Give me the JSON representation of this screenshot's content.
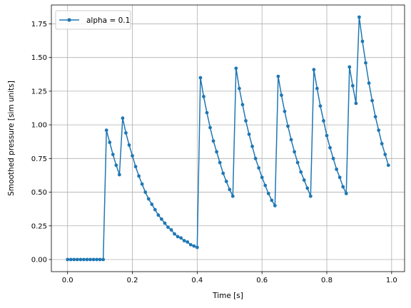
{
  "chart_data": {
    "type": "line",
    "xlabel": "Time [s]",
    "ylabel": "Smoothed pressure [sim units]",
    "xlim": [
      -0.05,
      1.04
    ],
    "ylim": [
      -0.09,
      1.89
    ],
    "xticks": [
      0.0,
      0.2,
      0.4,
      0.6,
      0.8,
      1.0
    ],
    "xtick_labels": [
      "0.0",
      "0.2",
      "0.4",
      "0.6",
      "0.8",
      "1.0"
    ],
    "yticks": [
      0.0,
      0.25,
      0.5,
      0.75,
      1.0,
      1.25,
      1.5,
      1.75
    ],
    "ytick_labels": [
      "0.00",
      "0.25",
      "0.50",
      "0.75",
      "1.00",
      "1.25",
      "1.50",
      "1.75"
    ],
    "grid": true,
    "legend": {
      "position": "top-left"
    },
    "series": [
      {
        "name": "alpha = 0.1",
        "color": "#1f77b4",
        "marker": "circle",
        "x": [
          0.0,
          0.01,
          0.02,
          0.03,
          0.04,
          0.05,
          0.06,
          0.07,
          0.08,
          0.09,
          0.1,
          0.11,
          0.12,
          0.13,
          0.14,
          0.15,
          0.16,
          0.17,
          0.18,
          0.19,
          0.2,
          0.21,
          0.22,
          0.23,
          0.24,
          0.25,
          0.26,
          0.27,
          0.28,
          0.29,
          0.3,
          0.31,
          0.32,
          0.33,
          0.34,
          0.35,
          0.36,
          0.37,
          0.38,
          0.39,
          0.4,
          0.41,
          0.42,
          0.43,
          0.44,
          0.45,
          0.46,
          0.47,
          0.48,
          0.49,
          0.5,
          0.51,
          0.52,
          0.53,
          0.54,
          0.55,
          0.56,
          0.57,
          0.58,
          0.59,
          0.6,
          0.61,
          0.62,
          0.63,
          0.64,
          0.65,
          0.66,
          0.67,
          0.68,
          0.69,
          0.7,
          0.71,
          0.72,
          0.73,
          0.74,
          0.75,
          0.76,
          0.77,
          0.78,
          0.79,
          0.8,
          0.81,
          0.82,
          0.83,
          0.84,
          0.85,
          0.86,
          0.87,
          0.88,
          0.89,
          0.9,
          0.91,
          0.92,
          0.93,
          0.94,
          0.95,
          0.96,
          0.97,
          0.98,
          0.99
        ],
        "y": [
          0,
          0,
          0,
          0,
          0,
          0,
          0,
          0,
          0,
          0,
          0,
          0,
          0.96,
          0.87,
          0.78,
          0.7,
          0.63,
          1.05,
          0.94,
          0.85,
          0.77,
          0.69,
          0.62,
          0.56,
          0.5,
          0.45,
          0.41,
          0.37,
          0.33,
          0.3,
          0.27,
          0.24,
          0.22,
          0.19,
          0.17,
          0.16,
          0.14,
          0.13,
          0.11,
          0.1,
          0.09,
          1.35,
          1.21,
          1.09,
          0.98,
          0.88,
          0.8,
          0.72,
          0.64,
          0.58,
          0.52,
          0.47,
          1.42,
          1.27,
          1.15,
          1.03,
          0.93,
          0.84,
          0.75,
          0.68,
          0.61,
          0.55,
          0.49,
          0.44,
          0.4,
          1.36,
          1.22,
          1.1,
          0.99,
          0.89,
          0.8,
          0.72,
          0.65,
          0.59,
          0.53,
          0.47,
          1.41,
          1.27,
          1.14,
          1.03,
          0.92,
          0.83,
          0.75,
          0.67,
          0.61,
          0.54,
          0.49,
          1.43,
          1.29,
          1.16,
          1.8,
          1.62,
          1.46,
          1.31,
          1.18,
          1.06,
          0.96,
          0.86,
          0.78,
          0.7
        ]
      }
    ]
  }
}
